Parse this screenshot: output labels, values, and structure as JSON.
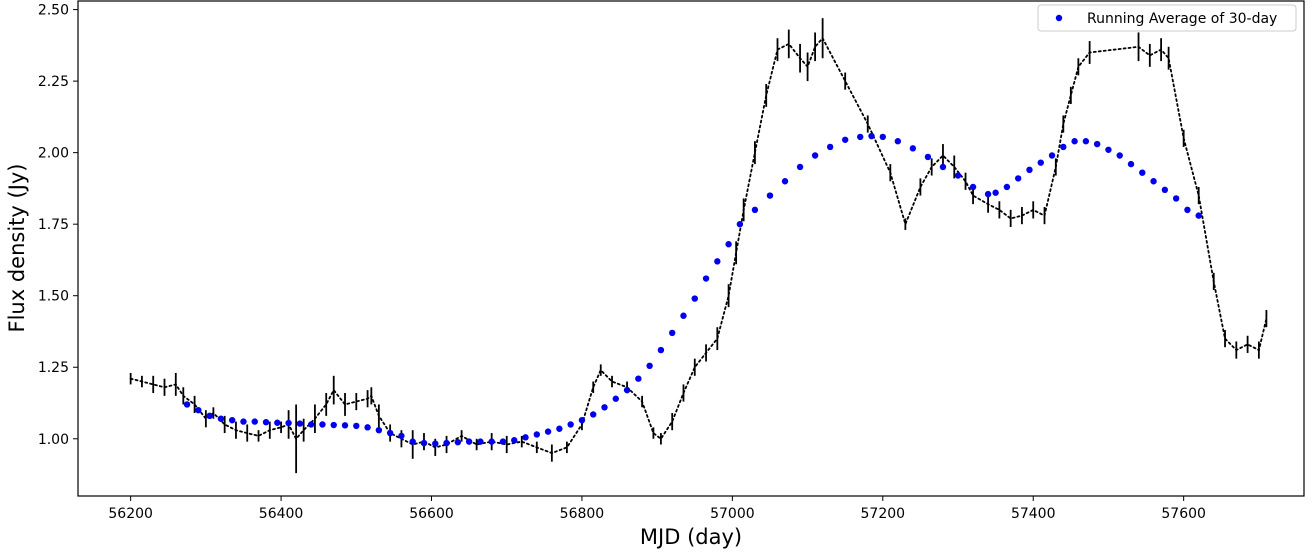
{
  "chart_data": {
    "type": "line",
    "xlabel": "MJD (day)",
    "ylabel": "Flux density (Jy)",
    "xlim": [
      56130,
      57760
    ],
    "ylim": [
      0.8,
      2.53
    ],
    "x_ticks": [
      56200,
      56400,
      56600,
      56800,
      57000,
      57200,
      57400,
      57600
    ],
    "y_ticks": [
      1.0,
      1.25,
      1.5,
      1.75,
      2.0,
      2.25,
      2.5
    ],
    "x_tick_labels": [
      "56200",
      "56400",
      "56600",
      "56800",
      "57000",
      "57200",
      "57400",
      "57600"
    ],
    "y_tick_labels": [
      "1.00",
      "1.25",
      "1.50",
      "1.75",
      "2.00",
      "2.25",
      "2.50"
    ],
    "legend": {
      "position": "upper right",
      "entries": [
        "Running Average of 30-day"
      ]
    },
    "grid": false,
    "series": [
      {
        "kind": "observed",
        "color": "#000000",
        "style": "dotted-errorbar",
        "x": [
          56200,
          56215,
          56230,
          56245,
          56260,
          56270,
          56285,
          56300,
          56310,
          56325,
          56340,
          56355,
          56370,
          56385,
          56400,
          56410,
          56420,
          56430,
          56445,
          56460,
          56470,
          56485,
          56500,
          56515,
          56520,
          56530,
          56545,
          56560,
          56575,
          56590,
          56605,
          56620,
          56640,
          56660,
          56680,
          56700,
          56720,
          56740,
          56760,
          56780,
          56800,
          56815,
          56825,
          56840,
          56860,
          56880,
          56895,
          56905,
          56920,
          56935,
          56950,
          56965,
          56980,
          56995,
          57005,
          57015,
          57030,
          57045,
          57060,
          57075,
          57090,
          57100,
          57110,
          57120,
          57150,
          57180,
          57210,
          57230,
          57250,
          57265,
          57280,
          57295,
          57310,
          57320,
          57340,
          57355,
          57370,
          57385,
          57400,
          57415,
          57430,
          57440,
          57450,
          57460,
          57475,
          57540,
          57555,
          57570,
          57580,
          57600,
          57620,
          57640,
          57655,
          57670,
          57685,
          57700,
          57710
        ],
        "y": [
          1.21,
          1.2,
          1.19,
          1.18,
          1.19,
          1.15,
          1.12,
          1.07,
          1.09,
          1.05,
          1.03,
          1.02,
          1.01,
          1.03,
          1.04,
          1.05,
          1.0,
          1.03,
          1.07,
          1.12,
          1.17,
          1.12,
          1.13,
          1.14,
          1.15,
          1.08,
          1.02,
          1.0,
          0.98,
          0.99,
          0.97,
          0.98,
          1.01,
          0.98,
          0.99,
          0.98,
          0.99,
          0.97,
          0.95,
          0.97,
          1.05,
          1.18,
          1.24,
          1.2,
          1.18,
          1.13,
          1.02,
          1.0,
          1.06,
          1.16,
          1.25,
          1.3,
          1.35,
          1.5,
          1.65,
          1.8,
          2.0,
          2.2,
          2.36,
          2.38,
          2.33,
          2.3,
          2.37,
          2.4,
          2.25,
          2.1,
          1.93,
          1.75,
          1.88,
          1.95,
          1.99,
          1.95,
          1.9,
          1.85,
          1.82,
          1.8,
          1.77,
          1.78,
          1.8,
          1.78,
          1.95,
          2.1,
          2.2,
          2.3,
          2.35,
          2.37,
          2.34,
          2.36,
          2.33,
          2.05,
          1.85,
          1.55,
          1.35,
          1.31,
          1.33,
          1.31,
          1.42
        ],
        "err": [
          0.02,
          0.02,
          0.03,
          0.03,
          0.04,
          0.03,
          0.03,
          0.03,
          0.02,
          0.03,
          0.03,
          0.03,
          0.02,
          0.03,
          0.02,
          0.05,
          0.12,
          0.04,
          0.05,
          0.04,
          0.05,
          0.04,
          0.03,
          0.03,
          0.03,
          0.04,
          0.03,
          0.03,
          0.05,
          0.03,
          0.03,
          0.03,
          0.02,
          0.02,
          0.03,
          0.03,
          0.02,
          0.02,
          0.03,
          0.02,
          0.02,
          0.02,
          0.02,
          0.02,
          0.02,
          0.02,
          0.02,
          0.02,
          0.03,
          0.03,
          0.03,
          0.03,
          0.04,
          0.04,
          0.04,
          0.04,
          0.04,
          0.04,
          0.04,
          0.05,
          0.05,
          0.05,
          0.05,
          0.07,
          0.03,
          0.03,
          0.03,
          0.02,
          0.03,
          0.03,
          0.04,
          0.04,
          0.03,
          0.03,
          0.03,
          0.03,
          0.03,
          0.03,
          0.03,
          0.03,
          0.03,
          0.03,
          0.03,
          0.03,
          0.04,
          0.05,
          0.04,
          0.04,
          0.04,
          0.03,
          0.03,
          0.03,
          0.03,
          0.03,
          0.03,
          0.03,
          0.03
        ]
      },
      {
        "name": "Running Average of 30-day",
        "kind": "running-average",
        "color": "#0000ee",
        "style": "dots",
        "x": [
          56275,
          56290,
          56305,
          56320,
          56335,
          56350,
          56365,
          56380,
          56395,
          56410,
          56425,
          56440,
          56455,
          56470,
          56485,
          56500,
          56515,
          56530,
          56545,
          56560,
          56575,
          56590,
          56605,
          56620,
          56635,
          56650,
          56665,
          56680,
          56695,
          56710,
          56725,
          56740,
          56755,
          56770,
          56785,
          56800,
          56815,
          56830,
          56845,
          56860,
          56875,
          56890,
          56905,
          56920,
          56935,
          56950,
          56965,
          56980,
          56995,
          57010,
          57030,
          57050,
          57070,
          57090,
          57110,
          57130,
          57150,
          57170,
          57185,
          57200,
          57220,
          57240,
          57260,
          57280,
          57300,
          57320,
          57340,
          57350,
          57365,
          57380,
          57395,
          57410,
          57425,
          57440,
          57455,
          57470,
          57485,
          57500,
          57515,
          57530,
          57545,
          57560,
          57575,
          57590,
          57605,
          57620
        ],
        "y": [
          1.12,
          1.1,
          1.08,
          1.07,
          1.065,
          1.06,
          1.06,
          1.058,
          1.056,
          1.055,
          1.053,
          1.05,
          1.05,
          1.048,
          1.047,
          1.045,
          1.04,
          1.03,
          1.02,
          1.01,
          0.99,
          0.985,
          0.983,
          0.985,
          0.988,
          0.99,
          0.99,
          0.99,
          0.99,
          0.995,
          1.005,
          1.015,
          1.025,
          1.035,
          1.05,
          1.065,
          1.085,
          1.11,
          1.14,
          1.17,
          1.21,
          1.255,
          1.31,
          1.37,
          1.43,
          1.49,
          1.56,
          1.62,
          1.68,
          1.75,
          1.8,
          1.85,
          1.9,
          1.95,
          1.99,
          2.02,
          2.045,
          2.055,
          2.058,
          2.055,
          2.04,
          2.015,
          1.985,
          1.95,
          1.92,
          1.88,
          1.855,
          1.86,
          1.88,
          1.91,
          1.94,
          1.965,
          1.99,
          2.02,
          2.04,
          2.04,
          2.03,
          2.01,
          1.99,
          1.96,
          1.93,
          1.9,
          1.87,
          1.84,
          1.8,
          1.78
        ]
      }
    ]
  }
}
